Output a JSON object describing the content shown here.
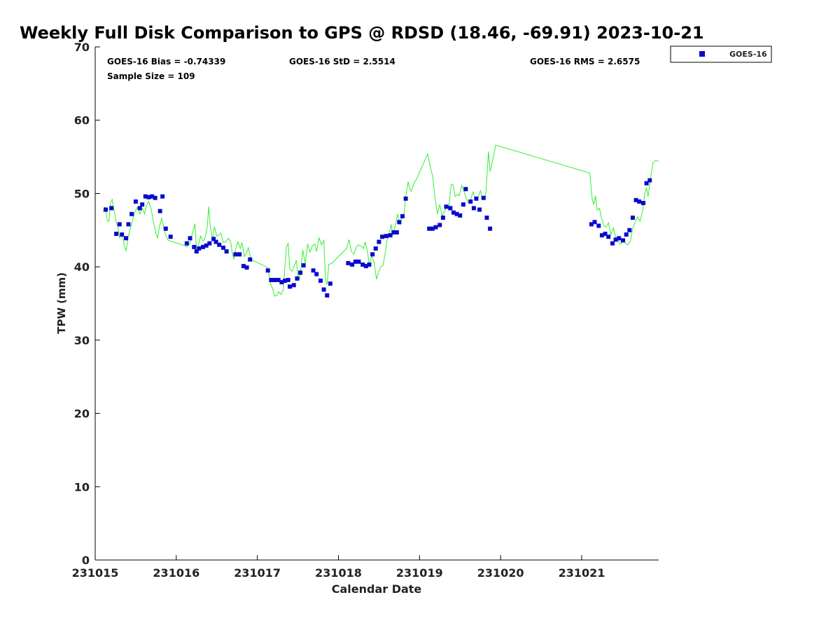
{
  "chart_data": {
    "type": "scatter",
    "title": "Weekly Full Disk Comparison to GPS @ RDSD (18.46, -69.91) 2023-10-21",
    "xlabel": "Calendar Date",
    "ylabel": "TPW (mm)",
    "xlim": [
      0,
      6.95
    ],
    "ylim": [
      0,
      70
    ],
    "yticks": [
      0,
      10,
      20,
      30,
      40,
      50,
      60,
      70
    ],
    "xticks": [
      {
        "value": 0,
        "label": "231015"
      },
      {
        "value": 1,
        "label": "231016"
      },
      {
        "value": 2,
        "label": "231017"
      },
      {
        "value": 3,
        "label": "231018"
      },
      {
        "value": 4,
        "label": "231019"
      },
      {
        "value": 5,
        "label": "231020"
      },
      {
        "value": 6,
        "label": "231021"
      }
    ],
    "stats": {
      "bias": "GOES-16 Bias = -0.74339",
      "std": "GOES-16 StD = 2.5514",
      "rms": "GOES-16 RMS = 2.6575",
      "sample": "Sample Size = 109"
    },
    "legend": {
      "label": "GOES-16",
      "position": "outside-top-right"
    },
    "colors": {
      "goes": "#0a0acd",
      "gps": "#33ee33"
    },
    "series": [
      {
        "name": "GOES-16",
        "marker": "square",
        "points": [
          [
            0.13,
            47.8
          ],
          [
            0.2,
            48.0
          ],
          [
            0.26,
            44.5
          ],
          [
            0.3,
            45.8
          ],
          [
            0.33,
            44.4
          ],
          [
            0.38,
            43.9
          ],
          [
            0.41,
            45.8
          ],
          [
            0.45,
            47.2
          ],
          [
            0.5,
            48.9
          ],
          [
            0.55,
            48.0
          ],
          [
            0.58,
            48.5
          ],
          [
            0.62,
            49.6
          ],
          [
            0.66,
            49.5
          ],
          [
            0.7,
            49.6
          ],
          [
            0.74,
            49.4
          ],
          [
            0.8,
            47.6
          ],
          [
            0.83,
            49.6
          ],
          [
            0.87,
            45.2
          ],
          [
            0.93,
            44.1
          ],
          [
            1.13,
            43.2
          ],
          [
            1.17,
            43.9
          ],
          [
            1.22,
            42.7
          ],
          [
            1.25,
            42.1
          ],
          [
            1.28,
            42.5
          ],
          [
            1.33,
            42.7
          ],
          [
            1.37,
            42.9
          ],
          [
            1.41,
            43.2
          ],
          [
            1.46,
            43.8
          ],
          [
            1.49,
            43.4
          ],
          [
            1.53,
            43.0
          ],
          [
            1.58,
            42.6
          ],
          [
            1.62,
            42.1
          ],
          [
            1.73,
            41.7
          ],
          [
            1.78,
            41.7
          ],
          [
            1.83,
            40.1
          ],
          [
            1.87,
            39.9
          ],
          [
            1.91,
            41.0
          ],
          [
            2.13,
            39.5
          ],
          [
            2.17,
            38.2
          ],
          [
            2.21,
            38.2
          ],
          [
            2.26,
            38.2
          ],
          [
            2.3,
            37.9
          ],
          [
            2.34,
            38.1
          ],
          [
            2.38,
            38.2
          ],
          [
            2.4,
            37.3
          ],
          [
            2.45,
            37.5
          ],
          [
            2.49,
            38.4
          ],
          [
            2.53,
            39.2
          ],
          [
            2.57,
            40.2
          ],
          [
            2.69,
            39.5
          ],
          [
            2.73,
            39.0
          ],
          [
            2.78,
            38.1
          ],
          [
            2.82,
            36.9
          ],
          [
            2.86,
            36.1
          ],
          [
            2.9,
            37.7
          ],
          [
            3.12,
            40.5
          ],
          [
            3.17,
            40.3
          ],
          [
            3.21,
            40.7
          ],
          [
            3.25,
            40.7
          ],
          [
            3.3,
            40.3
          ],
          [
            3.34,
            40.1
          ],
          [
            3.38,
            40.3
          ],
          [
            3.42,
            41.7
          ],
          [
            3.46,
            42.5
          ],
          [
            3.5,
            43.4
          ],
          [
            3.54,
            44.1
          ],
          [
            3.59,
            44.2
          ],
          [
            3.64,
            44.3
          ],
          [
            3.68,
            44.7
          ],
          [
            3.72,
            44.7
          ],
          [
            3.75,
            46.1
          ],
          [
            3.79,
            46.9
          ],
          [
            3.83,
            49.3
          ],
          [
            4.12,
            45.2
          ],
          [
            4.16,
            45.2
          ],
          [
            4.2,
            45.4
          ],
          [
            4.25,
            45.7
          ],
          [
            4.29,
            46.7
          ],
          [
            4.33,
            48.2
          ],
          [
            4.38,
            48.0
          ],
          [
            4.42,
            47.4
          ],
          [
            4.46,
            47.2
          ],
          [
            4.5,
            47.0
          ],
          [
            4.54,
            48.5
          ],
          [
            4.57,
            50.6
          ],
          [
            4.63,
            48.9
          ],
          [
            4.67,
            48.0
          ],
          [
            4.7,
            49.3
          ],
          [
            4.74,
            47.8
          ],
          [
            4.79,
            49.4
          ],
          [
            4.83,
            46.7
          ],
          [
            4.87,
            45.2
          ],
          [
            6.12,
            45.8
          ],
          [
            6.16,
            46.1
          ],
          [
            6.21,
            45.6
          ],
          [
            6.25,
            44.3
          ],
          [
            6.29,
            44.5
          ],
          [
            6.33,
            44.1
          ],
          [
            6.38,
            43.2
          ],
          [
            6.42,
            43.7
          ],
          [
            6.46,
            43.9
          ],
          [
            6.51,
            43.6
          ],
          [
            6.55,
            44.4
          ],
          [
            6.59,
            45.0
          ],
          [
            6.63,
            46.7
          ],
          [
            6.67,
            49.1
          ],
          [
            6.71,
            48.9
          ],
          [
            6.76,
            48.7
          ],
          [
            6.8,
            51.4
          ],
          [
            6.84,
            51.8
          ]
        ]
      },
      {
        "name": "GPS",
        "marker": "line",
        "points": [
          [
            0.1,
            47.5
          ],
          [
            0.12,
            48.2
          ],
          [
            0.15,
            46.3
          ],
          [
            0.17,
            46.2
          ],
          [
            0.19,
            48.8
          ],
          [
            0.21,
            49.2
          ],
          [
            0.23,
            47.9
          ],
          [
            0.26,
            46.0
          ],
          [
            0.28,
            45.5
          ],
          [
            0.3,
            44.0
          ],
          [
            0.33,
            44.6
          ],
          [
            0.36,
            42.8
          ],
          [
            0.38,
            42.2
          ],
          [
            0.41,
            44.2
          ],
          [
            0.45,
            45.9
          ],
          [
            0.49,
            47.5
          ],
          [
            0.52,
            48.1
          ],
          [
            0.55,
            47.2
          ],
          [
            0.58,
            48.0
          ],
          [
            0.61,
            47.2
          ],
          [
            0.63,
            48.3
          ],
          [
            0.66,
            48.9
          ],
          [
            0.69,
            47.9
          ],
          [
            0.72,
            46.0
          ],
          [
            0.75,
            44.5
          ],
          [
            0.77,
            43.9
          ],
          [
            0.79,
            45.4
          ],
          [
            0.82,
            46.6
          ],
          [
            0.84,
            45.7
          ],
          [
            0.87,
            44.3
          ],
          [
            0.9,
            43.6
          ],
          [
            1.1,
            42.9
          ],
          [
            1.13,
            42.7
          ],
          [
            1.17,
            43.2
          ],
          [
            1.19,
            44.2
          ],
          [
            1.21,
            45.0
          ],
          [
            1.23,
            45.9
          ],
          [
            1.25,
            42.2
          ],
          [
            1.27,
            42.7
          ],
          [
            1.3,
            44.2
          ],
          [
            1.33,
            43.5
          ],
          [
            1.35,
            43.8
          ],
          [
            1.38,
            45.2
          ],
          [
            1.4,
            48.2
          ],
          [
            1.42,
            45.4
          ],
          [
            1.45,
            43.7
          ],
          [
            1.47,
            45.5
          ],
          [
            1.5,
            44.2
          ],
          [
            1.52,
            44.3
          ],
          [
            1.55,
            44.6
          ],
          [
            1.58,
            43.3
          ],
          [
            1.61,
            43.4
          ],
          [
            1.64,
            43.9
          ],
          [
            1.67,
            43.5
          ],
          [
            1.69,
            42.0
          ],
          [
            1.71,
            41.0
          ],
          [
            1.73,
            42.3
          ],
          [
            1.76,
            43.4
          ],
          [
            1.79,
            42.5
          ],
          [
            1.81,
            43.3
          ],
          [
            1.84,
            41.4
          ],
          [
            1.87,
            42.0
          ],
          [
            1.89,
            42.6
          ],
          [
            1.92,
            41.0
          ],
          [
            2.13,
            39.9
          ],
          [
            2.16,
            37.7
          ],
          [
            2.19,
            37.0
          ],
          [
            2.21,
            36.0
          ],
          [
            2.24,
            36.1
          ],
          [
            2.26,
            36.6
          ],
          [
            2.29,
            36.2
          ],
          [
            2.32,
            36.9
          ],
          [
            2.34,
            40.0
          ],
          [
            2.36,
            42.8
          ],
          [
            2.38,
            43.2
          ],
          [
            2.4,
            39.6
          ],
          [
            2.43,
            39.4
          ],
          [
            2.46,
            40.3
          ],
          [
            2.48,
            40.9
          ],
          [
            2.5,
            38.7
          ],
          [
            2.52,
            38.3
          ],
          [
            2.54,
            40.0
          ],
          [
            2.56,
            42.3
          ],
          [
            2.59,
            40.5
          ],
          [
            2.62,
            43.1
          ],
          [
            2.65,
            42.0
          ],
          [
            2.68,
            42.9
          ],
          [
            2.71,
            43.1
          ],
          [
            2.73,
            42.1
          ],
          [
            2.76,
            44.0
          ],
          [
            2.79,
            43.0
          ],
          [
            2.82,
            43.6
          ],
          [
            2.84,
            38.3
          ],
          [
            2.86,
            37.6
          ],
          [
            2.88,
            40.3
          ],
          [
            2.92,
            40.5
          ],
          [
            3.1,
            42.5
          ],
          [
            3.13,
            43.7
          ],
          [
            3.16,
            42.1
          ],
          [
            3.19,
            41.7
          ],
          [
            3.22,
            42.7
          ],
          [
            3.25,
            43.0
          ],
          [
            3.28,
            42.8
          ],
          [
            3.31,
            42.5
          ],
          [
            3.33,
            43.4
          ],
          [
            3.36,
            42.0
          ],
          [
            3.38,
            40.2
          ],
          [
            3.41,
            41.5
          ],
          [
            3.44,
            40.6
          ],
          [
            3.47,
            38.3
          ],
          [
            3.49,
            39.1
          ],
          [
            3.52,
            40.0
          ],
          [
            3.55,
            40.2
          ],
          [
            3.58,
            42.1
          ],
          [
            3.6,
            43.7
          ],
          [
            3.62,
            44.2
          ],
          [
            3.65,
            45.8
          ],
          [
            3.67,
            44.3
          ],
          [
            3.7,
            45.6
          ],
          [
            3.73,
            47.2
          ],
          [
            3.76,
            45.7
          ],
          [
            3.78,
            46.6
          ],
          [
            3.81,
            47.3
          ],
          [
            3.83,
            49.6
          ],
          [
            3.86,
            51.6
          ],
          [
            3.88,
            50.6
          ],
          [
            3.9,
            50.3
          ],
          [
            3.93,
            51.4
          ],
          [
            3.96,
            51.9
          ],
          [
            4.1,
            55.4
          ],
          [
            4.14,
            53.3
          ],
          [
            4.16,
            52.5
          ],
          [
            4.19,
            49.5
          ],
          [
            4.22,
            47.2
          ],
          [
            4.25,
            48.5
          ],
          [
            4.28,
            46.9
          ],
          [
            4.31,
            47.6
          ],
          [
            4.34,
            48.2
          ],
          [
            4.36,
            47.9
          ],
          [
            4.39,
            51.2
          ],
          [
            4.41,
            51.3
          ],
          [
            4.44,
            49.6
          ],
          [
            4.47,
            49.9
          ],
          [
            4.49,
            49.7
          ],
          [
            4.52,
            51.1
          ],
          [
            4.54,
            50.7
          ],
          [
            4.57,
            49.5
          ],
          [
            4.6,
            48.8
          ],
          [
            4.63,
            49.2
          ],
          [
            4.66,
            50.2
          ],
          [
            4.69,
            49.2
          ],
          [
            4.72,
            49.4
          ],
          [
            4.75,
            50.4
          ],
          [
            4.77,
            49.4
          ],
          [
            4.8,
            49.2
          ],
          [
            4.82,
            50.2
          ],
          [
            4.85,
            55.7
          ],
          [
            4.87,
            53.0
          ],
          [
            4.9,
            54.4
          ],
          [
            4.94,
            56.6
          ],
          [
            6.1,
            52.8
          ],
          [
            6.13,
            49.2
          ],
          [
            6.15,
            48.5
          ],
          [
            6.17,
            49.7
          ],
          [
            6.19,
            47.7
          ],
          [
            6.22,
            48.0
          ],
          [
            6.24,
            46.8
          ],
          [
            6.27,
            45.7
          ],
          [
            6.3,
            45.4
          ],
          [
            6.33,
            46.0
          ],
          [
            6.36,
            44.4
          ],
          [
            6.39,
            45.3
          ],
          [
            6.42,
            44.0
          ],
          [
            6.45,
            43.7
          ],
          [
            6.47,
            43.1
          ],
          [
            6.49,
            43.2
          ],
          [
            6.51,
            43.8
          ],
          [
            6.54,
            43.2
          ],
          [
            6.57,
            43.0
          ],
          [
            6.6,
            43.5
          ],
          [
            6.63,
            45.2
          ],
          [
            6.66,
            46.1
          ],
          [
            6.69,
            46.8
          ],
          [
            6.72,
            46.2
          ],
          [
            6.75,
            47.5
          ],
          [
            6.78,
            50.1
          ],
          [
            6.8,
            50.7
          ],
          [
            6.82,
            49.6
          ],
          [
            6.85,
            52.1
          ],
          [
            6.88,
            54.2
          ],
          [
            6.91,
            54.5
          ],
          [
            6.95,
            54.4
          ]
        ]
      }
    ]
  }
}
